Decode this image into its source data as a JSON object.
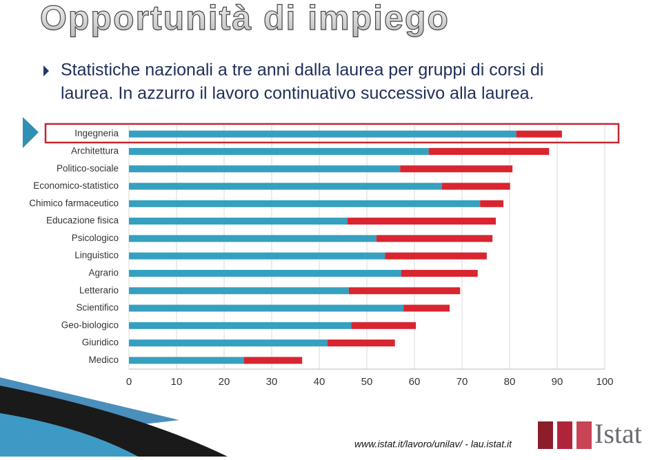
{
  "title": "Opportunità di impiego",
  "bullet_lines": [
    "Statistiche nazionali a tre anni dalla laurea per gruppi di corsi di",
    "laurea. In azzurro il lavoro continuativo successivo alla laurea."
  ],
  "footer": {
    "url": "www.istat.it/lavoro/unilav/ - lau.istat.it",
    "logo": "Istat"
  },
  "chart_data": {
    "type": "stacked-bar-horizontal",
    "categories": [
      "Ingegneria",
      "Architettura",
      "Politico-sociale",
      "Economico-statistico",
      "Chimico farmaceutico",
      "Educazione fisica",
      "Psicologico",
      "Linguistico",
      "Agrario",
      "Letterario",
      "Scientifico",
      "Geo-biologico",
      "Giuridico",
      "Medico"
    ],
    "series": [
      {
        "color": "#35a0c0",
        "values": [
          81.4,
          63.0,
          57.0,
          65.8,
          73.8,
          45.9,
          52.0,
          53.8,
          57.2,
          46.2,
          57.7,
          46.7,
          41.7,
          24.2
        ]
      },
      {
        "color": "#d9252f",
        "values": [
          9.6,
          25.3,
          23.6,
          14.3,
          4.9,
          31.2,
          24.4,
          21.4,
          16.1,
          23.4,
          9.7,
          13.6,
          14.2,
          12.2
        ]
      }
    ],
    "xlim": [
      0,
      100
    ],
    "xticks": [
      0,
      10,
      20,
      30,
      40,
      50,
      60,
      70,
      80,
      90,
      100
    ],
    "grid": true
  }
}
